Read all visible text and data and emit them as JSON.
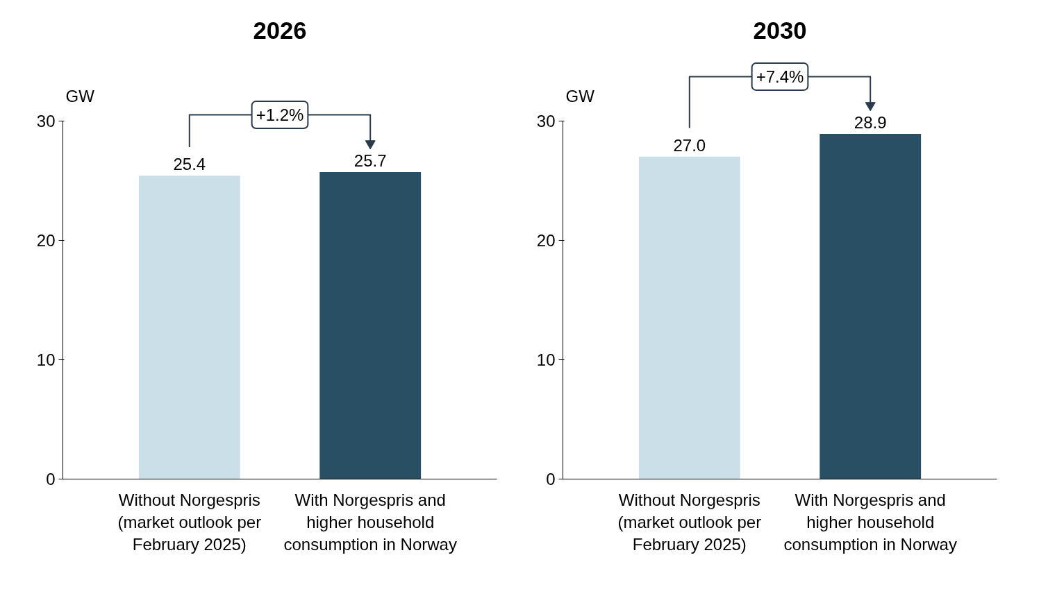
{
  "chart_data": [
    {
      "type": "bar",
      "title": "2026",
      "ylabel": "GW",
      "categories": [
        "Without Norgespris (market outlook per February 2025)",
        "With Norgespris and higher household consumption in Norway"
      ],
      "values": [
        25.4,
        25.7
      ],
      "value_labels": [
        "25.4",
        "25.7"
      ],
      "colors": [
        "#cadfe8",
        "#284f63"
      ],
      "ylim": [
        0,
        30
      ],
      "yticks": [
        0,
        10,
        20,
        30
      ],
      "grid": false,
      "annotations": [
        "+1.2%"
      ]
    },
    {
      "type": "bar",
      "title": "2030",
      "ylabel": "GW",
      "categories": [
        "Without Norgespris (market outlook per February 2025)",
        "With Norgespris and higher household consumption in Norway"
      ],
      "values": [
        27.0,
        28.9
      ],
      "value_labels": [
        "27.0",
        "28.9"
      ],
      "colors": [
        "#cadfe8",
        "#284f63"
      ],
      "ylim": [
        0,
        30
      ],
      "yticks": [
        0,
        10,
        20,
        30
      ],
      "grid": false,
      "annotations": [
        "+7.4%"
      ]
    }
  ]
}
